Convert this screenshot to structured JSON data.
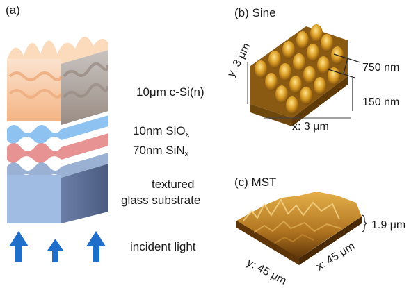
{
  "panel_a": {
    "label": "(a)",
    "layers": [
      {
        "text": "10μm c-Si(n)",
        "sub": ""
      },
      {
        "text": "10nm SiO",
        "sub": "x"
      },
      {
        "text": "70nm SiN",
        "sub": "x"
      },
      {
        "text": "textured",
        "sub": ""
      },
      {
        "text": "glass substrate",
        "sub": ""
      },
      {
        "text": "incident light",
        "sub": ""
      }
    ],
    "colors": {
      "silicon": "#f6b98a",
      "sio": "#7ab8ee",
      "sin": "#e88a8a",
      "glass": "#9ab6df",
      "arrow": "#1f6ec9"
    }
  },
  "panel_b": {
    "label": "(b) Sine",
    "y_label": "y: 3 μm",
    "x_label": "x: 3 μm",
    "period_label": "750 nm",
    "height_label": "150 nm"
  },
  "panel_c": {
    "label": "(c) MST",
    "y_label": "y: 45 μm",
    "x_label": "x: 45 μm",
    "height_label": "1.9 μm"
  }
}
